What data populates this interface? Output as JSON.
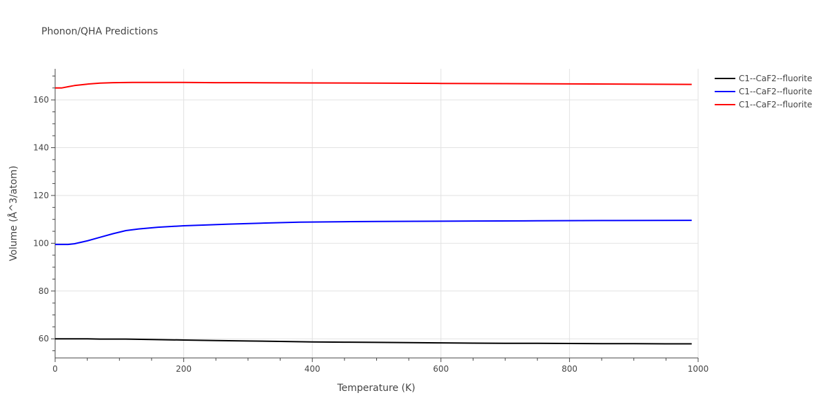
{
  "chart_data": {
    "type": "line",
    "title": "Phonon/QHA Predictions",
    "xlabel": "Temperature (K)",
    "ylabel": "Volume (Å^3/atom)",
    "xlim": [
      0,
      1000
    ],
    "ylim": [
      52,
      173
    ],
    "grid": true,
    "legend_position": "top-right",
    "x_ticks": [
      0,
      200,
      400,
      600,
      800,
      1000
    ],
    "y_ticks": [
      60,
      80,
      100,
      120,
      140,
      160
    ],
    "series": [
      {
        "name": "C1--CaF2--fluorite",
        "color": "#000000",
        "x": [
          0,
          10,
          20,
          30,
          50,
          70,
          90,
          110,
          150,
          200,
          250,
          300,
          350,
          400,
          450,
          500,
          550,
          600,
          650,
          700,
          750,
          800,
          850,
          900,
          950,
          990
        ],
        "y": [
          60.0,
          60.0,
          60.0,
          60.0,
          60.0,
          59.9,
          59.9,
          59.9,
          59.7,
          59.5,
          59.3,
          59.1,
          58.9,
          58.7,
          58.6,
          58.5,
          58.4,
          58.3,
          58.2,
          58.15,
          58.1,
          58.05,
          58.0,
          57.95,
          57.9,
          57.9
        ]
      },
      {
        "name": "C1--CaF2--fluorite",
        "color": "#0000ff",
        "x": [
          0,
          10,
          20,
          30,
          50,
          70,
          90,
          110,
          130,
          160,
          200,
          230,
          270,
          320,
          380,
          450,
          500,
          560,
          650,
          750,
          850,
          990
        ],
        "y": [
          99.5,
          99.5,
          99.5,
          99.8,
          101.0,
          102.5,
          104.0,
          105.3,
          106.0,
          106.7,
          107.3,
          107.6,
          108.0,
          108.4,
          108.8,
          109.0,
          109.1,
          109.2,
          109.3,
          109.4,
          109.5,
          109.6
        ]
      },
      {
        "name": "C1--CaF2--fluorite",
        "color": "#ff0000",
        "x": [
          0,
          10,
          20,
          30,
          50,
          70,
          90,
          120,
          150,
          200,
          250,
          300,
          400,
          500,
          600,
          700,
          800,
          900,
          990
        ],
        "y": [
          165.0,
          165.0,
          165.5,
          166.0,
          166.6,
          167.0,
          167.2,
          167.3,
          167.3,
          167.3,
          167.2,
          167.2,
          167.1,
          167.0,
          166.9,
          166.8,
          166.7,
          166.6,
          166.5
        ]
      }
    ]
  }
}
